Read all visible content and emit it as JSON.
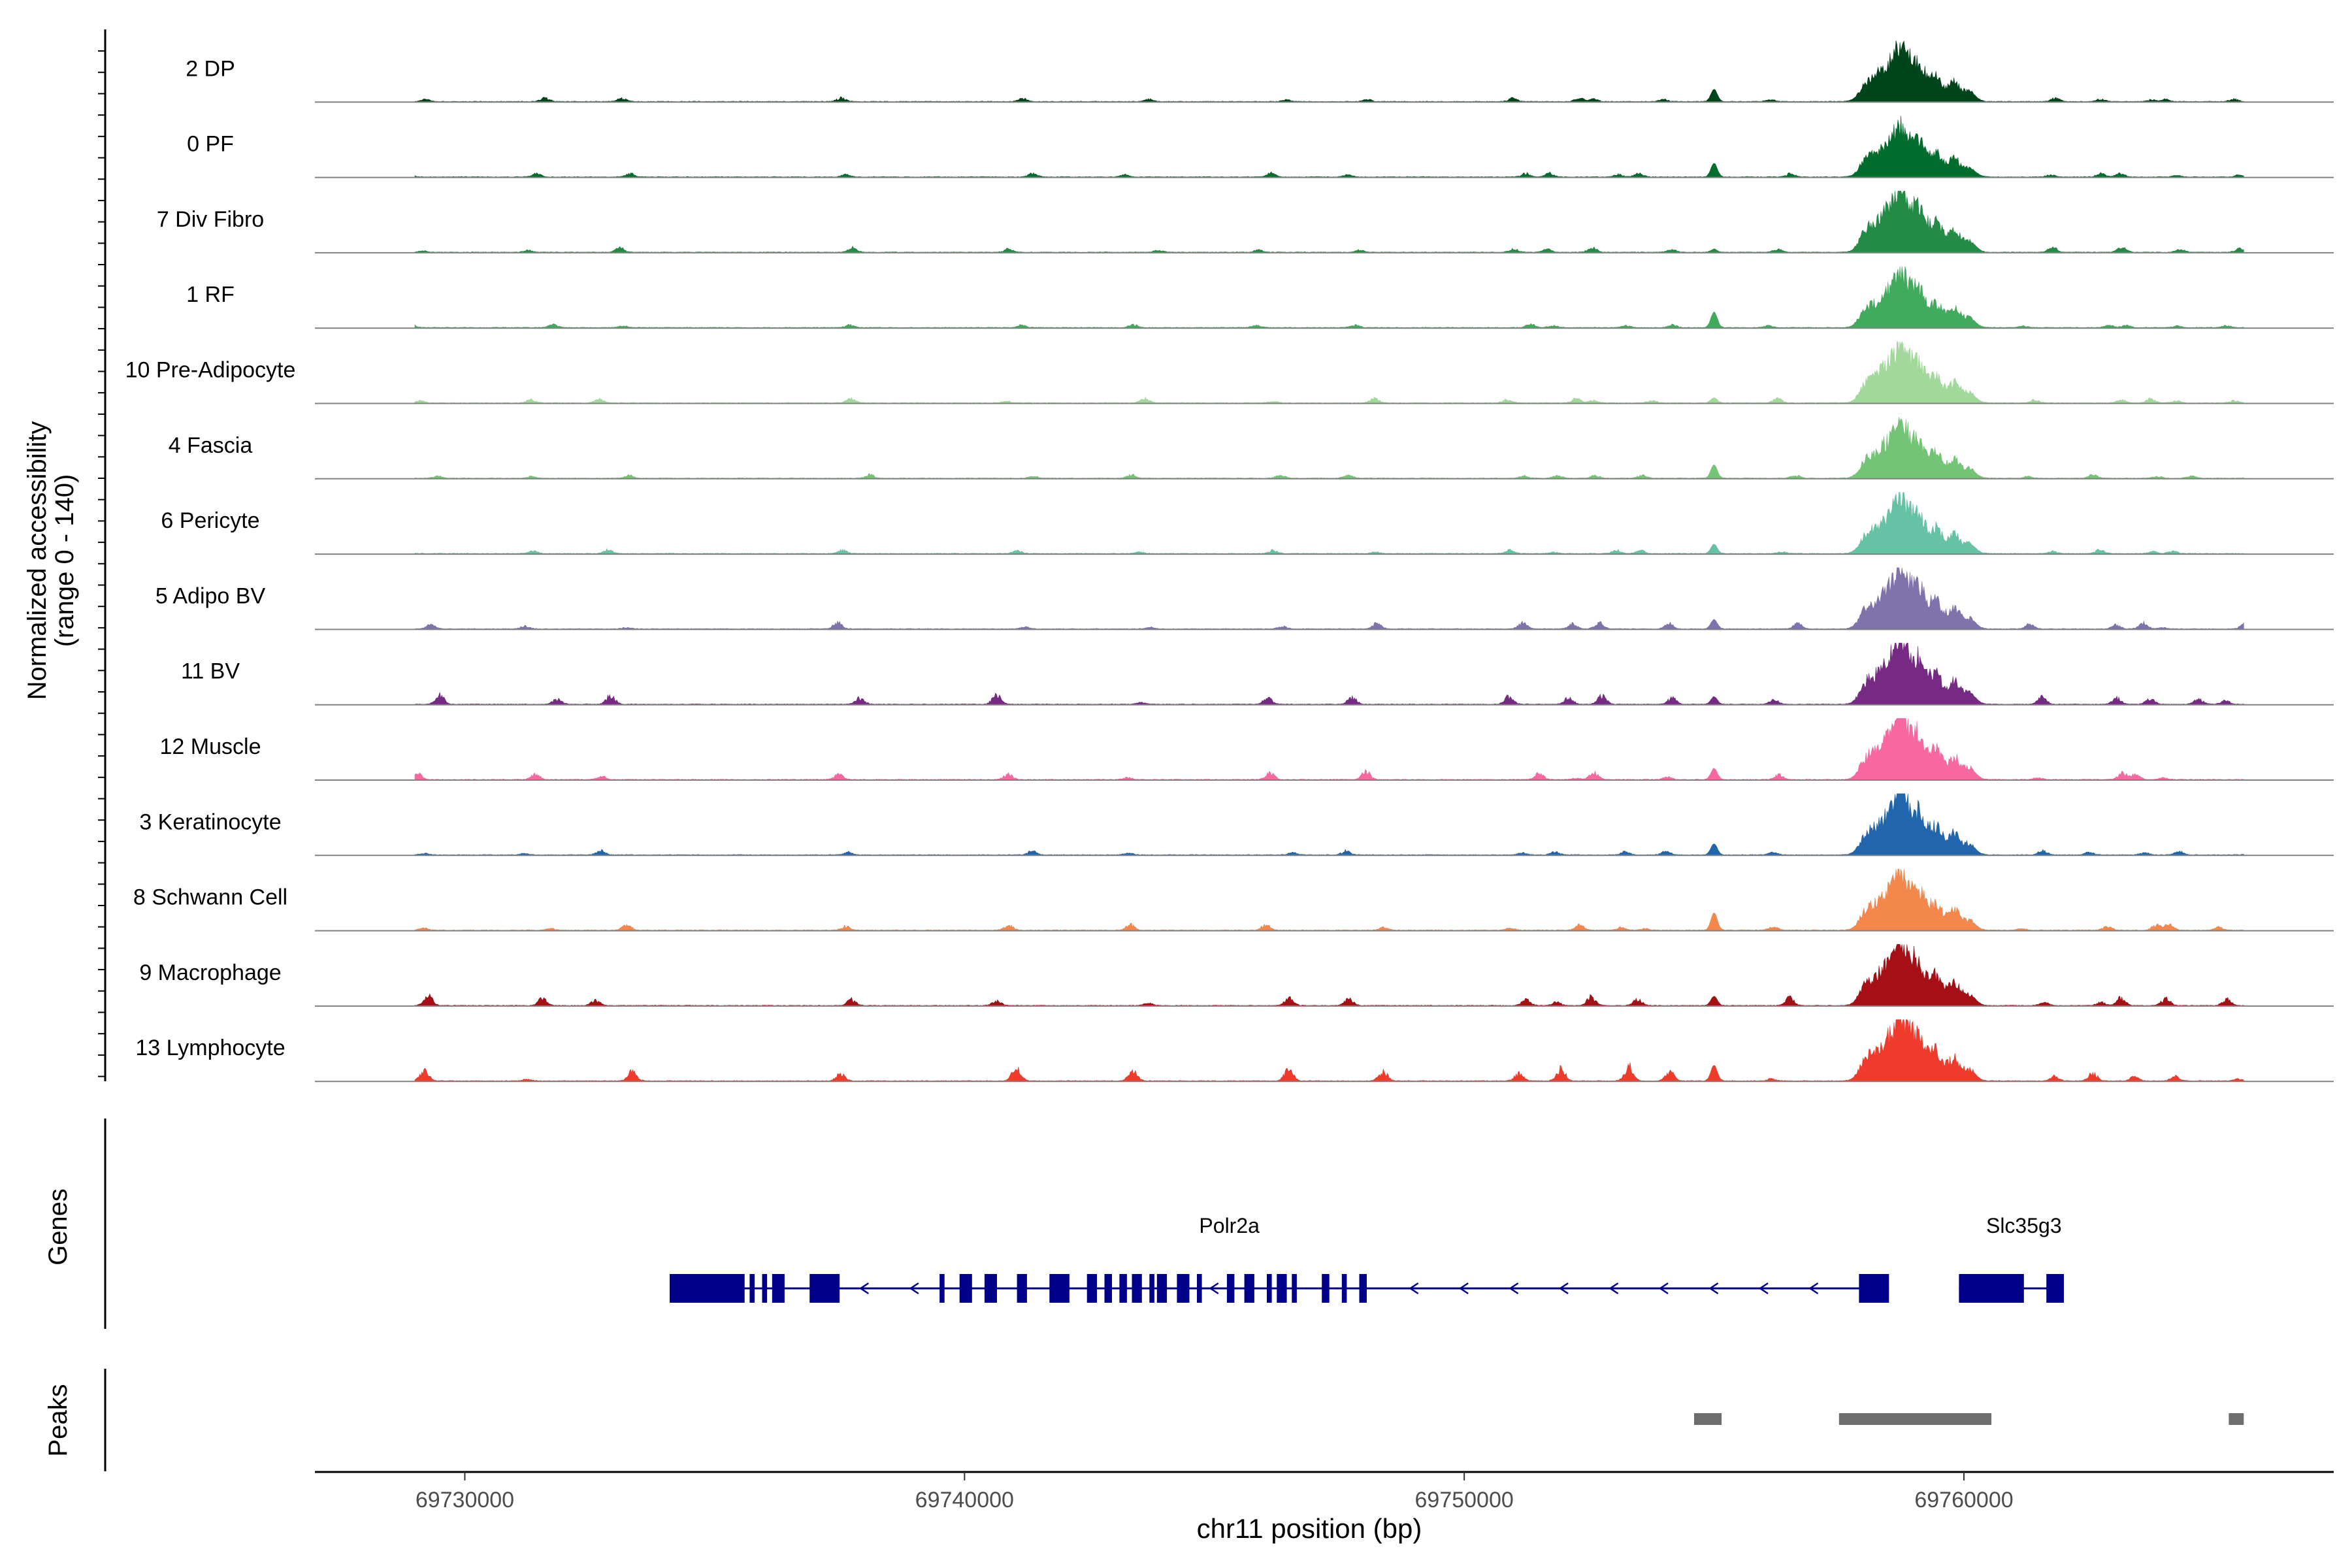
{
  "chart_data": {
    "type": "area",
    "title": "",
    "y_axis_title_line1": "Normalized accessibility",
    "y_axis_title_line2": "(range 0 - 140)",
    "yrange": [
      0,
      140
    ],
    "xlabel": "chr11 position (bp)",
    "xlim": [
      69727000,
      69767400
    ],
    "x_ticks": [
      69730000,
      69740000,
      69750000,
      69760000
    ],
    "x_tick_labels": [
      "69730000",
      "69740000",
      "69750000",
      "69760000"
    ],
    "tracks": [
      {
        "name": "2 DP",
        "color": "#00441b",
        "peak_scale": 0.85,
        "side_peak": 0.2,
        "noise": 0.04
      },
      {
        "name": "0 PF",
        "color": "#006d2c",
        "peak_scale": 0.8,
        "side_peak": 0.22,
        "noise": 0.04
      },
      {
        "name": "7 Div Fibro",
        "color": "#238b45",
        "peak_scale": 1.0,
        "side_peak": 0.05,
        "noise": 0.06
      },
      {
        "name": "1 RF",
        "color": "#41ab5d",
        "peak_scale": 0.85,
        "side_peak": 0.25,
        "noise": 0.04
      },
      {
        "name": "10 Pre-Adipocyte",
        "color": "#a1d99b",
        "peak_scale": 0.9,
        "side_peak": 0.08,
        "noise": 0.06
      },
      {
        "name": "4 Fascia",
        "color": "#74c476",
        "peak_scale": 0.85,
        "side_peak": 0.22,
        "noise": 0.04
      },
      {
        "name": "6 Pericyte",
        "color": "#66c2a4",
        "peak_scale": 0.85,
        "side_peak": 0.15,
        "noise": 0.04
      },
      {
        "name": "5 Adipo BV",
        "color": "#8073ac",
        "peak_scale": 0.95,
        "side_peak": 0.15,
        "noise": 0.08
      },
      {
        "name": "11 BV",
        "color": "#762a83",
        "peak_scale": 1.0,
        "side_peak": 0.12,
        "noise": 0.12
      },
      {
        "name": "12 Muscle",
        "color": "#f768a1",
        "peak_scale": 1.0,
        "side_peak": 0.18,
        "noise": 0.1
      },
      {
        "name": "3 Keratinocyte",
        "color": "#2166ac",
        "peak_scale": 0.95,
        "side_peak": 0.18,
        "noise": 0.06
      },
      {
        "name": "8 Schwann Cell",
        "color": "#f4874b",
        "peak_scale": 0.9,
        "side_peak": 0.28,
        "noise": 0.08
      },
      {
        "name": "9 Macrophage",
        "color": "#a50f15",
        "peak_scale": 1.0,
        "side_peak": 0.15,
        "noise": 0.14
      },
      {
        "name": "13 Lymphocyte",
        "color": "#ef3b2c",
        "peak_scale": 1.0,
        "side_peak": 0.25,
        "noise": 0.22
      }
    ],
    "genes_label": "Genes",
    "genes": [
      {
        "name": "Polr2a",
        "strand": "-",
        "start": 69734100,
        "end": 69758500,
        "exons": [
          [
            69734100,
            69735600
          ],
          [
            69735700,
            69735800
          ],
          [
            69735950,
            69736050
          ],
          [
            69736150,
            69736400
          ],
          [
            69736900,
            69737500
          ],
          [
            69739500,
            69739600
          ],
          [
            69739900,
            69740150
          ],
          [
            69740400,
            69740650
          ],
          [
            69741050,
            69741250
          ],
          [
            69741700,
            69742100
          ],
          [
            69742450,
            69742650
          ],
          [
            69742800,
            69742950
          ],
          [
            69743100,
            69743250
          ],
          [
            69743350,
            69743550
          ],
          [
            69743700,
            69743800
          ],
          [
            69743850,
            69744050
          ],
          [
            69744250,
            69744500
          ],
          [
            69744650,
            69744750
          ],
          [
            69745250,
            69745400
          ],
          [
            69745600,
            69745800
          ],
          [
            69746050,
            69746150
          ],
          [
            69746250,
            69746450
          ],
          [
            69746550,
            69746650
          ],
          [
            69747150,
            69747300
          ],
          [
            69747550,
            69747650
          ],
          [
            69747900,
            69748050
          ],
          [
            69757900,
            69758500
          ]
        ]
      },
      {
        "name": "Slc35g3",
        "strand": "+",
        "start": 69759900,
        "end": 69762000,
        "exons": [
          [
            69759900,
            69761200
          ],
          [
            69761650,
            69762000
          ]
        ]
      }
    ],
    "peaks_label": "Peaks",
    "peaks": [
      [
        69754600,
        69755150
      ],
      [
        69757500,
        69760550
      ],
      [
        69765300,
        69765600
      ]
    ]
  }
}
